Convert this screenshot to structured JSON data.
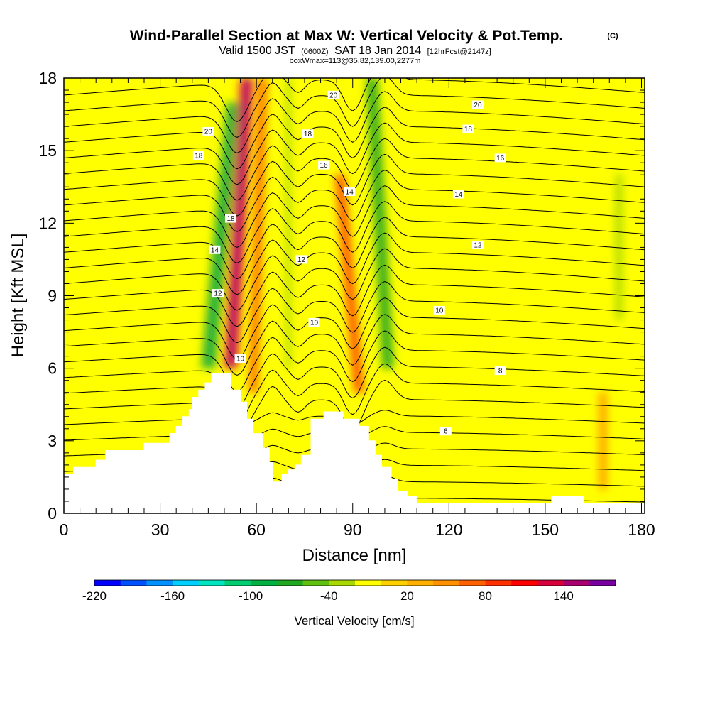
{
  "chart_data": {
    "type": "heatmap",
    "title": "Wind-Parallel Section at Max W: Vertical Velocity & Pot.Temp.",
    "title_mark": "(C)",
    "subtitle": {
      "prefix": "Valid 1500 JST",
      "utc": "(0600Z)",
      "date": "SAT 18 Jan 2014",
      "forecast": "[12hrFcst@2147z]"
    },
    "subtitle2": "boxWmax=113@35.82,139.00,2277m",
    "xlabel": "Distance [nm]",
    "ylabel": "Height [Kft MSL]",
    "xlim": [
      0,
      181
    ],
    "ylim": [
      0,
      18
    ],
    "x_ticks": [
      "0",
      "30",
      "60",
      "90",
      "120",
      "150",
      "180"
    ],
    "x_tick_values": [
      0,
      30,
      60,
      90,
      120,
      150,
      180
    ],
    "y_ticks": [
      "0",
      "3",
      "6",
      "9",
      "12",
      "15",
      "18"
    ],
    "y_tick_values": [
      0,
      3,
      6,
      9,
      12,
      15,
      18
    ],
    "terrain": [
      [
        0,
        1.6
      ],
      [
        3,
        1.6
      ],
      [
        3,
        1.9
      ],
      [
        10,
        1.9
      ],
      [
        10,
        2.2
      ],
      [
        13,
        2.2
      ],
      [
        13,
        2.6
      ],
      [
        25,
        2.6
      ],
      [
        25,
        2.9
      ],
      [
        33,
        2.9
      ],
      [
        33,
        3.3
      ],
      [
        35,
        3.3
      ],
      [
        35,
        3.6
      ],
      [
        37,
        3.6
      ],
      [
        37,
        4.0
      ],
      [
        39,
        4.0
      ],
      [
        39,
        4.3
      ],
      [
        40,
        4.3
      ],
      [
        40,
        4.8
      ],
      [
        42,
        4.8
      ],
      [
        42,
        5.1
      ],
      [
        44,
        5.1
      ],
      [
        44,
        5.4
      ],
      [
        46,
        5.4
      ],
      [
        46,
        5.8
      ],
      [
        52,
        5.8
      ],
      [
        52,
        5.1
      ],
      [
        55,
        5.1
      ],
      [
        55,
        4.6
      ],
      [
        57,
        4.6
      ],
      [
        57,
        3.9
      ],
      [
        59,
        3.9
      ],
      [
        59,
        3.3
      ],
      [
        62,
        3.3
      ],
      [
        62,
        2.7
      ],
      [
        64,
        2.7
      ],
      [
        64,
        2.1
      ],
      [
        65,
        2.1
      ],
      [
        65,
        1.3
      ],
      [
        68,
        1.3
      ],
      [
        68,
        1.6
      ],
      [
        70,
        1.6
      ],
      [
        70,
        1.8
      ],
      [
        72,
        1.8
      ],
      [
        72,
        2.0
      ],
      [
        74,
        2.0
      ],
      [
        74,
        2.4
      ],
      [
        77,
        2.4
      ],
      [
        77,
        3.9
      ],
      [
        81,
        3.9
      ],
      [
        81,
        4.2
      ],
      [
        87,
        4.2
      ],
      [
        87,
        3.9
      ],
      [
        92,
        3.9
      ],
      [
        92,
        3.6
      ],
      [
        95,
        3.6
      ],
      [
        95,
        3.0
      ],
      [
        97,
        3.0
      ],
      [
        97,
        2.4
      ],
      [
        99,
        2.4
      ],
      [
        99,
        1.9
      ],
      [
        102,
        1.9
      ],
      [
        102,
        1.4
      ],
      [
        104,
        1.4
      ],
      [
        104,
        0.9
      ],
      [
        107,
        0.9
      ],
      [
        107,
        0.7
      ],
      [
        110,
        0.7
      ],
      [
        110,
        0.4
      ],
      [
        152,
        0.4
      ],
      [
        152,
        0.7
      ],
      [
        162,
        0.7
      ],
      [
        162,
        0.4
      ],
      [
        181,
        0.4
      ],
      [
        181,
        0
      ]
    ],
    "w_features": [
      {
        "x": [
          45,
          53
        ],
        "y": [
          6,
          17
        ],
        "w": 5,
        "value": -100
      },
      {
        "x": [
          52,
          57
        ],
        "y": [
          6,
          18
        ],
        "w": 4.5,
        "value": 130
      },
      {
        "x": [
          59,
          62
        ],
        "y": [
          5,
          18
        ],
        "w": 3,
        "value": 60
      },
      {
        "x": [
          70,
          70
        ],
        "y": [
          6,
          18
        ],
        "w": 3,
        "value": -40
      },
      {
        "x": [
          92,
          86
        ],
        "y": [
          5,
          14
        ],
        "w": 3.5,
        "value": 80
      },
      {
        "x": [
          101,
          96
        ],
        "y": [
          6,
          18
        ],
        "w": 4,
        "value": -90
      },
      {
        "x": [
          173,
          173
        ],
        "y": [
          8,
          14
        ],
        "w": 4,
        "value": -40
      },
      {
        "x": [
          168,
          168
        ],
        "y": [
          1,
          5
        ],
        "w": 2.5,
        "value": 40
      }
    ],
    "theta_contours": {
      "levels": [
        {
          "y0": 0.45,
          "a": 0.6
        },
        {
          "y0": 1.1,
          "a": 0.7
        },
        {
          "y0": 1.75,
          "a": 0.8
        },
        {
          "y0": 2.4,
          "a": 0.9
        },
        {
          "y0": 3.05,
          "a": 1.0
        },
        {
          "y0": 3.7,
          "a": 1.1
        },
        {
          "y0": 4.35,
          "a": 1.2
        },
        {
          "y0": 5.0,
          "a": 1.3
        },
        {
          "y0": 5.65,
          "a": 1.4
        },
        {
          "y0": 6.3,
          "a": 1.5
        },
        {
          "y0": 6.95,
          "a": 1.6
        },
        {
          "y0": 7.6,
          "a": 1.7
        },
        {
          "y0": 8.25,
          "a": 1.8
        },
        {
          "y0": 8.9,
          "a": 1.9
        },
        {
          "y0": 9.55,
          "a": 2.0
        },
        {
          "y0": 10.2,
          "a": 2.0
        },
        {
          "y0": 10.85,
          "a": 2.0
        },
        {
          "y0": 11.5,
          "a": 2.0
        },
        {
          "y0": 12.15,
          "a": 2.0
        },
        {
          "y0": 12.8,
          "a": 2.0
        },
        {
          "y0": 13.45,
          "a": 2.0
        },
        {
          "y0": 14.1,
          "a": 2.0
        },
        {
          "y0": 14.75,
          "a": 2.0
        },
        {
          "y0": 15.4,
          "a": 2.0
        },
        {
          "y0": 16.05,
          "a": 2.0
        },
        {
          "y0": 16.7,
          "a": 2.0
        },
        {
          "y0": 17.35,
          "a": 2.0
        }
      ],
      "dips": [
        {
          "x": 54,
          "w": 5,
          "d": 1.6
        },
        {
          "x": 65,
          "w": 3,
          "d": -0.6
        },
        {
          "x": 73,
          "w": 3,
          "d": 0.5
        },
        {
          "x": 90,
          "w": 4,
          "d": 1.3
        },
        {
          "x": 100,
          "w": 4,
          "d": -0.8
        }
      ]
    },
    "contour_labels": [
      {
        "text": "20",
        "x": 45,
        "y": 15.8
      },
      {
        "text": "18",
        "x": 42,
        "y": 14.8
      },
      {
        "text": "18",
        "x": 52,
        "y": 12.2
      },
      {
        "text": "14",
        "x": 47,
        "y": 10.9
      },
      {
        "text": "12",
        "x": 48,
        "y": 9.1
      },
      {
        "text": "10",
        "x": 55,
        "y": 6.4
      },
      {
        "text": "20",
        "x": 84,
        "y": 17.3
      },
      {
        "text": "18",
        "x": 76,
        "y": 15.7
      },
      {
        "text": "16",
        "x": 81,
        "y": 14.4
      },
      {
        "text": "14",
        "x": 89,
        "y": 13.3
      },
      {
        "text": "12",
        "x": 74,
        "y": 10.5
      },
      {
        "text": "10",
        "x": 78,
        "y": 7.9
      },
      {
        "text": "20",
        "x": 129,
        "y": 16.9
      },
      {
        "text": "18",
        "x": 126,
        "y": 15.9
      },
      {
        "text": "16",
        "x": 136,
        "y": 14.7
      },
      {
        "text": "14",
        "x": 123,
        "y": 13.2
      },
      {
        "text": "12",
        "x": 129,
        "y": 11.1
      },
      {
        "text": "10",
        "x": 117,
        "y": 8.4
      },
      {
        "text": "8",
        "x": 136,
        "y": 5.9
      },
      {
        "text": "6",
        "x": 119,
        "y": 3.4
      }
    ],
    "colorbar": {
      "label": "Vertical Velocity [cm/s]",
      "colors": [
        "#0000ff",
        "#0050ff",
        "#0090ff",
        "#00d0ff",
        "#00e5c0",
        "#00cc70",
        "#00b040",
        "#20a820",
        "#60c010",
        "#a8d800",
        "#ffff00",
        "#ffd000",
        "#ffb000",
        "#ff9000",
        "#ff6000",
        "#ff3000",
        "#ff0000",
        "#d8003a",
        "#a80070",
        "#7800a0"
      ],
      "tick_labels": [
        "-220",
        "-160",
        "-100",
        "-40",
        "20",
        "80",
        "140"
      ],
      "tick_indices": [
        0,
        3,
        6,
        9,
        12,
        15,
        18
      ]
    }
  }
}
